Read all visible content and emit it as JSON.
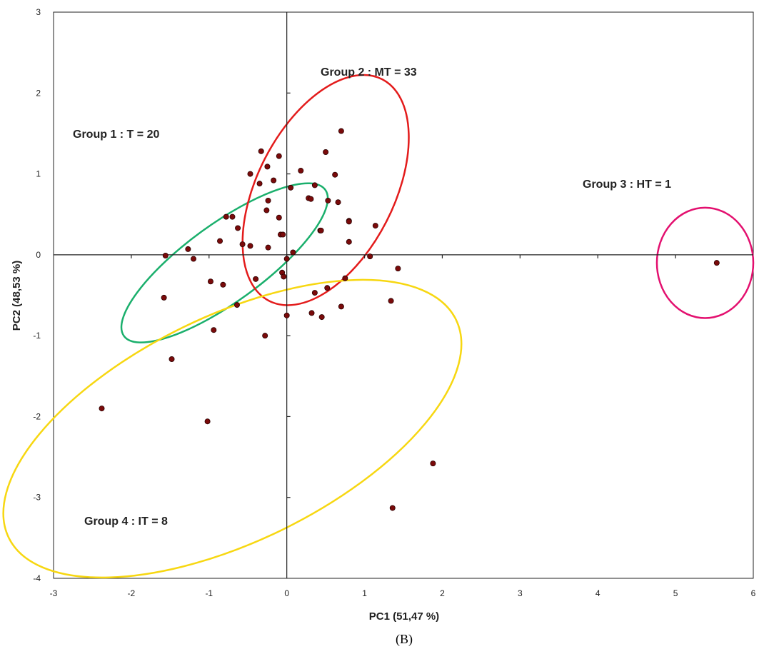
{
  "chart_data": {
    "type": "scatter",
    "title": "",
    "xlabel": "PC1 (51,47 %)",
    "ylabel": "PC2 (48,53 %)",
    "xlim": [
      -3,
      6
    ],
    "ylim": [
      -4,
      3
    ],
    "xticks": [
      -3,
      -2,
      -1,
      0,
      1,
      2,
      3,
      4,
      5,
      6
    ],
    "yticks": [
      -4,
      -3,
      -2,
      -1,
      0,
      1,
      2,
      3
    ],
    "grid": false,
    "caption": "(B)",
    "point_color": "#7a0a0a",
    "points": [
      [
        0.7,
        1.53
      ],
      [
        -0.33,
        1.28
      ],
      [
        0.5,
        1.27
      ],
      [
        -0.1,
        1.22
      ],
      [
        -0.25,
        1.09
      ],
      [
        0.18,
        1.04
      ],
      [
        -0.47,
        1.0
      ],
      [
        0.62,
        0.99
      ],
      [
        -0.17,
        0.92
      ],
      [
        -0.35,
        0.88
      ],
      [
        0.36,
        0.86
      ],
      [
        0.05,
        0.83
      ],
      [
        0.28,
        0.7
      ],
      [
        0.31,
        0.69
      ],
      [
        -0.24,
        0.67
      ],
      [
        0.53,
        0.67
      ],
      [
        0.66,
        0.65
      ],
      [
        -0.26,
        0.55
      ],
      [
        -0.78,
        0.47
      ],
      [
        -0.7,
        0.47
      ],
      [
        -0.1,
        0.46
      ],
      [
        0.8,
        0.42
      ],
      [
        0.8,
        0.41
      ],
      [
        1.14,
        0.36
      ],
      [
        -0.63,
        0.33
      ],
      [
        0.43,
        0.3
      ],
      [
        0.44,
        0.3
      ],
      [
        -0.08,
        0.25
      ],
      [
        -0.05,
        0.25
      ],
      [
        -0.86,
        0.17
      ],
      [
        0.8,
        0.16
      ],
      [
        -0.57,
        0.13
      ],
      [
        -0.47,
        0.11
      ],
      [
        -0.24,
        0.09
      ],
      [
        -1.27,
        0.07
      ],
      [
        0.08,
        0.03
      ],
      [
        -1.56,
        -0.01
      ],
      [
        0.0,
        -0.05
      ],
      [
        1.07,
        -0.02
      ],
      [
        -1.2,
        -0.05
      ],
      [
        1.43,
        -0.17
      ],
      [
        -0.06,
        -0.22
      ],
      [
        -0.04,
        -0.27
      ],
      [
        0.75,
        -0.29
      ],
      [
        -0.4,
        -0.3
      ],
      [
        -0.98,
        -0.33
      ],
      [
        -0.82,
        -0.37
      ],
      [
        0.52,
        -0.41
      ],
      [
        0.36,
        -0.47
      ],
      [
        -1.58,
        -0.53
      ],
      [
        1.34,
        -0.57
      ],
      [
        -0.64,
        -0.62
      ],
      [
        0.7,
        -0.64
      ],
      [
        0.32,
        -0.72
      ],
      [
        0.0,
        -0.75
      ],
      [
        0.45,
        -0.77
      ],
      [
        -0.94,
        -0.93
      ],
      [
        -0.28,
        -1.0
      ],
      [
        -1.48,
        -1.29
      ],
      [
        -2.38,
        -1.9
      ],
      [
        -1.02,
        -2.06
      ],
      [
        1.88,
        -2.58
      ],
      [
        1.36,
        -3.13
      ],
      [
        5.53,
        -0.1
      ]
    ],
    "groups": [
      {
        "label": "Group 1 : T = 20",
        "color": "#1aaf6c",
        "center": [
          -0.8,
          -0.1
        ],
        "a": 1.6,
        "b": 0.5,
        "angle_deg": -36
      },
      {
        "label": "Group 2 : MT = 33",
        "color": "#e31b1b",
        "center": [
          0.5,
          0.8
        ],
        "a": 1.6,
        "b": 0.88,
        "angle_deg": -63
      },
      {
        "label": "Group 3 : HT = 1",
        "color": "#e3106f",
        "center": [
          5.38,
          -0.1
        ],
        "a": 0.62,
        "b": 0.71,
        "angle_deg": 0
      },
      {
        "label": "Group 4 : IT = 8",
        "color": "#f7d711",
        "center": [
          -0.7,
          -2.15
        ],
        "a": 3.2,
        "b": 1.45,
        "angle_deg": -26
      }
    ]
  }
}
